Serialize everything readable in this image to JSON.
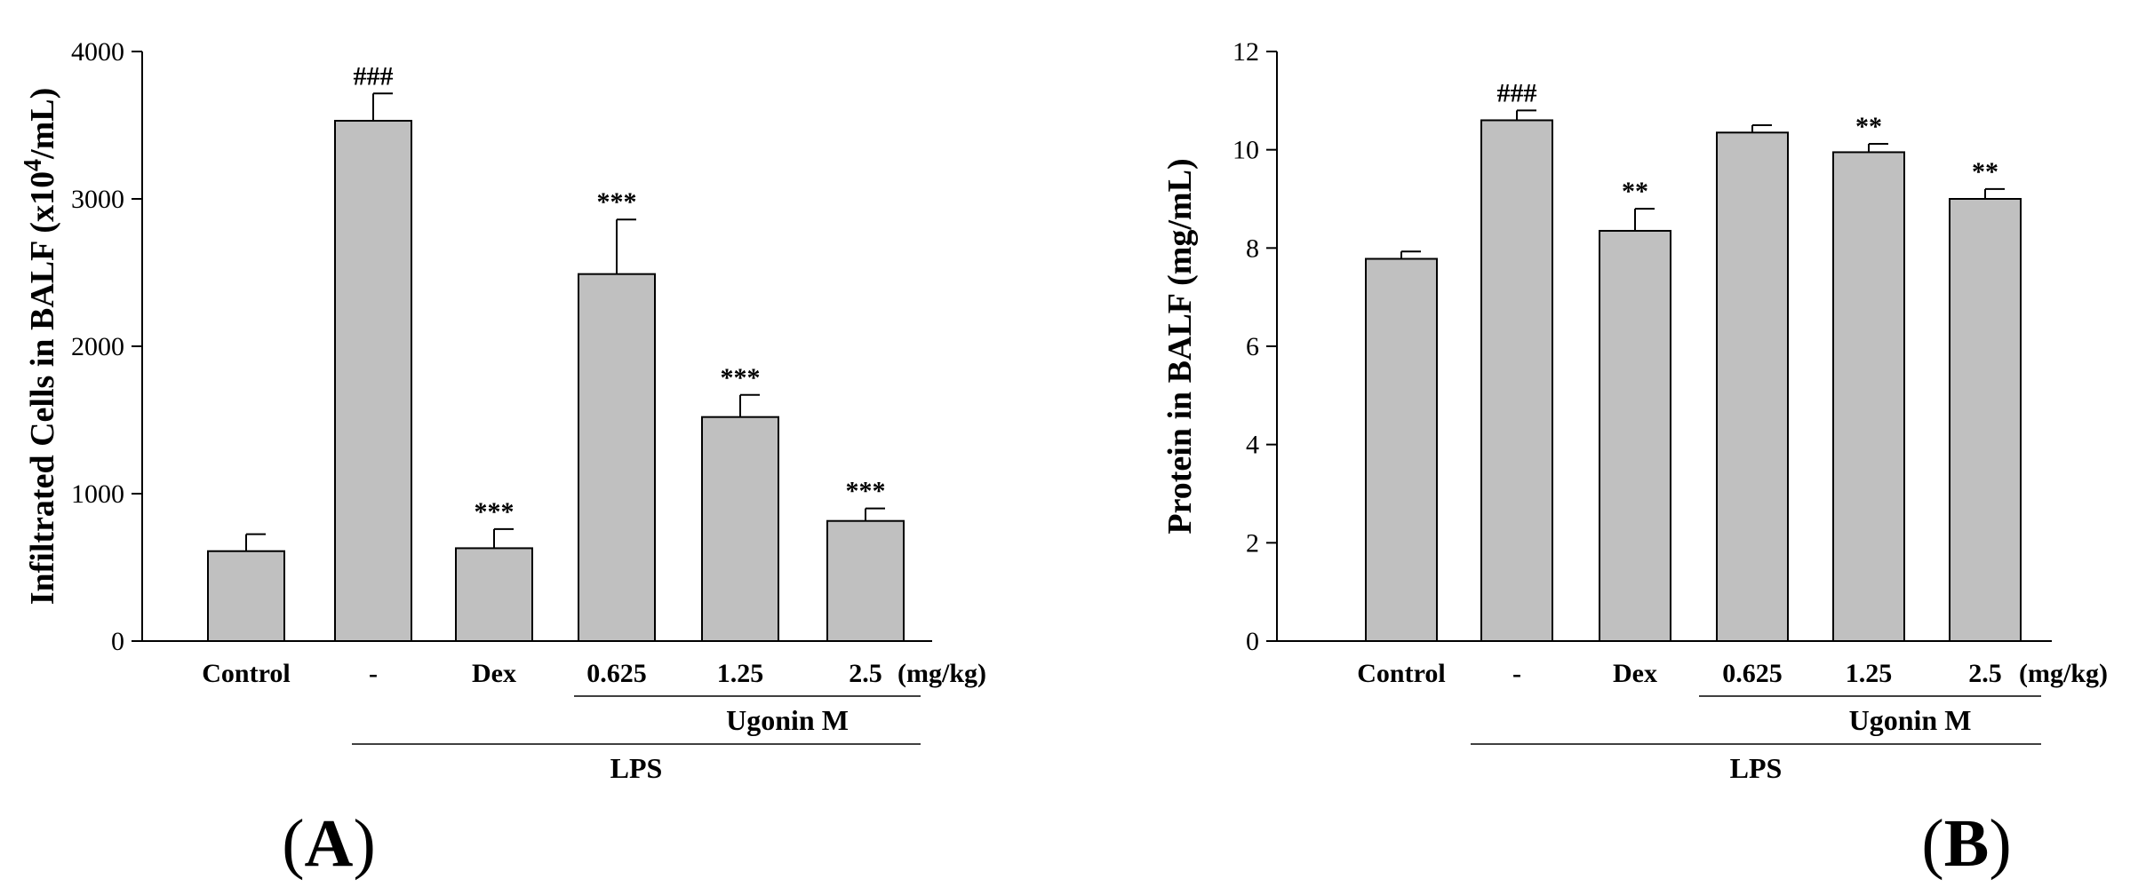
{
  "chart_data": [
    {
      "type": "bar",
      "panel_label": "A",
      "ylabel_main": "Infiltrated Cells in BALF (x10",
      "ylabel_sup": "4",
      "ylabel_tail": "/mL)",
      "ylim": [
        0,
        4000
      ],
      "yticks": [
        0,
        1000,
        2000,
        3000,
        4000
      ],
      "categories": [
        "Control",
        "-",
        "Dex",
        "0.625",
        "1.25",
        "2.5"
      ],
      "unit_label": "(mg/kg)",
      "values": [
        610,
        3530,
        630,
        2490,
        1520,
        815
      ],
      "errors": [
        115,
        185,
        130,
        370,
        150,
        85
      ],
      "annotations": [
        "",
        "###",
        "***",
        "***",
        "***",
        "***"
      ],
      "group_labels": {
        "ugonin": "Ugonin M",
        "lps": "LPS"
      },
      "bar_color": "#c0c0c0"
    },
    {
      "type": "bar",
      "panel_label": "B",
      "ylabel_main": "Protein in BALF (mg/mL)",
      "ylabel_sup": "",
      "ylabel_tail": "",
      "ylim": [
        0,
        12
      ],
      "yticks": [
        0,
        2,
        4,
        6,
        8,
        10,
        12
      ],
      "categories": [
        "Control",
        "-",
        "Dex",
        "0.625",
        "1.25",
        "2.5"
      ],
      "unit_label": "(mg/kg)",
      "values": [
        7.78,
        10.6,
        8.35,
        10.35,
        9.95,
        9.0
      ],
      "errors": [
        0.15,
        0.2,
        0.45,
        0.15,
        0.17,
        0.2
      ],
      "annotations": [
        "",
        "###",
        "**",
        "",
        "**",
        "**"
      ],
      "group_labels": {
        "ugonin": "Ugonin M",
        "lps": "LPS"
      },
      "bar_color": "#c0c0c0"
    }
  ]
}
